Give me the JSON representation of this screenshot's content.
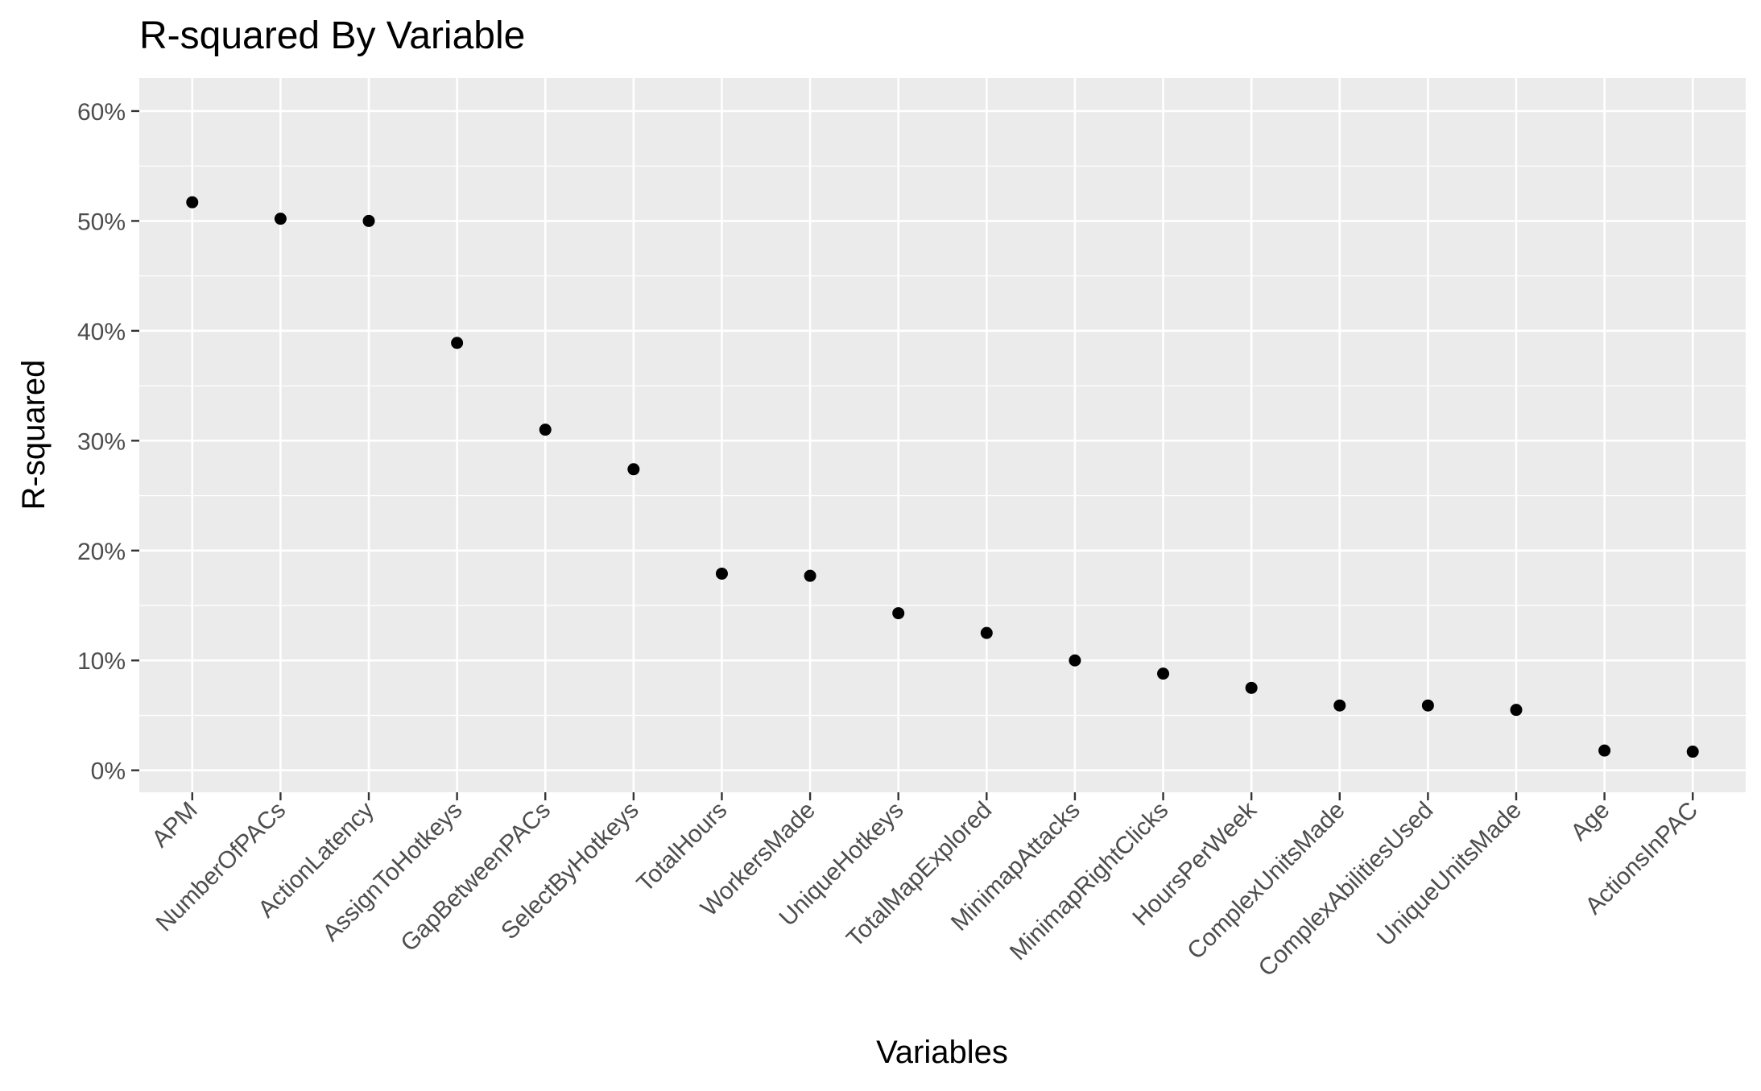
{
  "chart_data": {
    "type": "scatter",
    "title": "R-squared By Variable",
    "xlabel": "Variables",
    "ylabel": "R-squared",
    "categories": [
      "APM",
      "NumberOfPACs",
      "ActionLatency",
      "AssignToHotkeys",
      "GapBetweenPACs",
      "SelectByHotkeys",
      "TotalHours",
      "WorkersMade",
      "UniqueHotkeys",
      "TotalMapExplored",
      "MinimapAttacks",
      "MinimapRightClicks",
      "HoursPerWeek",
      "ComplexUnitsMade",
      "ComplexAbilitiesUsed",
      "UniqueUnitsMade",
      "Age",
      "ActionsInPAC"
    ],
    "values": [
      51.7,
      50.2,
      50.0,
      38.9,
      31.0,
      27.4,
      17.9,
      17.7,
      14.3,
      12.5,
      10.0,
      8.8,
      7.5,
      5.9,
      5.9,
      5.5,
      1.8,
      1.7
    ],
    "y_unit": "%",
    "ylim": [
      -2,
      63
    ],
    "yticks": [
      0,
      10,
      20,
      30,
      40,
      50,
      60
    ],
    "ytick_labels": [
      "0%",
      "10%",
      "20%",
      "30%",
      "40%",
      "50%",
      "60%"
    ],
    "grid": true,
    "panel_color": "#ebebeb",
    "grid_color": "#ffffff",
    "point_color": "#000000",
    "tick_label_color": "#4d4d4d"
  }
}
